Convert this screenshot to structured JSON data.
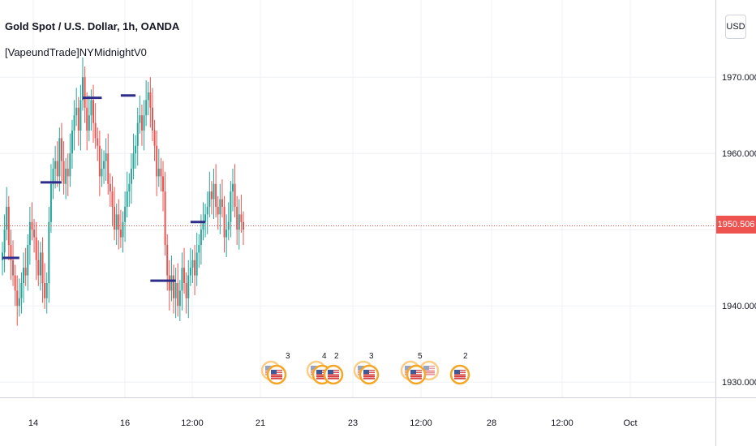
{
  "header": {
    "title": "Gold Spot / U.S. Dollar, 1h, OANDA",
    "indicator": "[VapeundTrade]NYMidnightV0",
    "currency_button": "USD"
  },
  "last_price": "1950.506",
  "colors": {
    "up": "#26a69a",
    "down": "#ef5350",
    "grid": "#eef0f3",
    "last_price_line": "#ef5350",
    "midnight_line": "#2e2e8a",
    "event_ring": "#f5a623"
  },
  "chart_data": {
    "type": "candlestick",
    "title": "Gold Spot / U.S. Dollar, 1h, OANDA",
    "y_axis": {
      "ticks": [
        "1930.000",
        "1940.000",
        "1950.000",
        "1960.000",
        "1970.000"
      ],
      "ylim": [
        1928,
        1978
      ],
      "position": "right"
    },
    "x_axis": {
      "ticks": [
        "14",
        "16",
        "12:00",
        "21",
        "23",
        "12:00",
        "28",
        "12:00",
        "Oct"
      ]
    },
    "grid": true,
    "series": [
      {
        "closes": [
          1947,
          1950,
          1953,
          1948,
          1946,
          1944,
          1942,
          1940,
          1941,
          1943,
          1945,
          1944,
          1948,
          1951,
          1950,
          1949,
          1946,
          1944,
          1947,
          1943,
          1941,
          1943,
          1951,
          1956,
          1958,
          1959,
          1957,
          1962,
          1959,
          1956,
          1958,
          1957,
          1960,
          1963,
          1965,
          1966,
          1963,
          1967,
          1970,
          1966,
          1963,
          1965,
          1967,
          1964,
          1962,
          1961,
          1957,
          1958,
          1959,
          1960,
          1956,
          1955,
          1953,
          1950,
          1952,
          1950,
          1949,
          1951,
          1953,
          1955,
          1956,
          1958,
          1960,
          1961,
          1964,
          1965,
          1963,
          1965,
          1967,
          1968,
          1966,
          1963,
          1961,
          1957,
          1958,
          1957,
          1955,
          1948,
          1944,
          1942,
          1944,
          1941,
          1943,
          1940,
          1942,
          1945,
          1943,
          1941,
          1944,
          1945,
          1946,
          1944,
          1947,
          1948,
          1950,
          1951,
          1952,
          1953,
          1955,
          1954,
          1956,
          1953,
          1952,
          1954,
          1953,
          1949,
          1950,
          1951,
          1955,
          1956,
          1953,
          1950,
          1952,
          1951,
          1950
        ],
        "midnight_opens": [
          {
            "start": 0,
            "end": 8,
            "price": 1946.3
          },
          {
            "start": 18,
            "end": 28,
            "price": 1956.2
          },
          {
            "start": 38,
            "end": 47,
            "price": 1967.3
          },
          {
            "start": 56,
            "end": 63,
            "price": 1967.6
          },
          {
            "start": 70,
            "end": 82,
            "price": 1943.3
          },
          {
            "start": 89,
            "end": 96,
            "price": 1951.0
          }
        ]
      }
    ]
  },
  "events": [
    {
      "label": "3"
    },
    {
      "label": "2"
    },
    {
      "label": "3"
    },
    {
      "label": "5"
    },
    {
      "label": "2"
    },
    {
      "label": "4"
    }
  ]
}
